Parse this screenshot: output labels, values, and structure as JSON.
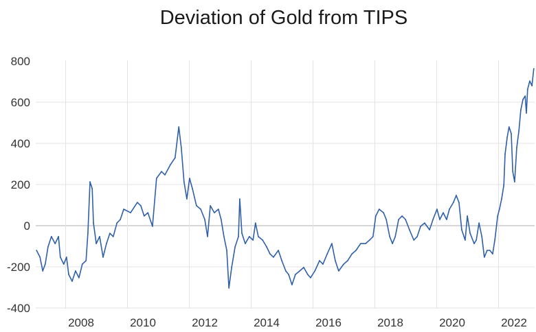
{
  "chart_data": {
    "type": "line",
    "title": "Deviation of Gold from TIPS",
    "xlabel": "",
    "ylabel": "",
    "ylim": [
      -400,
      800
    ],
    "xlim": [
      2006.5,
      2022.7
    ],
    "yticks": [
      800,
      600,
      400,
      200,
      0,
      -200,
      -400
    ],
    "xticks": [
      2008,
      2010,
      2012,
      2014,
      2016,
      2018,
      2020,
      2022
    ],
    "grid": true,
    "legend": "none",
    "series": [
      {
        "name": "Deviation of Gold from TIPS",
        "color": "#2e5faa",
        "x": [
          2006.56,
          2006.67,
          2006.76,
          2006.84,
          2006.93,
          2007.04,
          2007.16,
          2007.27,
          2007.33,
          2007.44,
          2007.53,
          2007.6,
          2007.71,
          2007.82,
          2007.93,
          2008.04,
          2008.16,
          2008.22,
          2008.29,
          2008.36,
          2008.4,
          2008.49,
          2008.6,
          2008.71,
          2008.82,
          2008.93,
          2009.04,
          2009.16,
          2009.27,
          2009.38,
          2009.6,
          2009.82,
          2009.93,
          2010.04,
          2010.16,
          2010.31,
          2010.44,
          2010.6,
          2010.71,
          2010.89,
          2011.04,
          2011.16,
          2011.24,
          2011.33,
          2011.42,
          2011.51,
          2011.6,
          2011.73,
          2011.87,
          2012.0,
          2012.09,
          2012.18,
          2012.31,
          2012.44,
          2012.53,
          2012.62,
          2012.71,
          2012.78,
          2012.87,
          2012.98,
          2013.09,
          2013.13,
          2013.2,
          2013.31,
          2013.44,
          2013.56,
          2013.64,
          2013.73,
          2013.87,
          2014.0,
          2014.11,
          2014.22,
          2014.38,
          2014.49,
          2014.62,
          2014.71,
          2014.82,
          2014.93,
          2015.07,
          2015.2,
          2015.33,
          2015.42,
          2015.56,
          2015.71,
          2015.82,
          2015.96,
          2016.11,
          2016.22,
          2016.33,
          2016.49,
          2016.62,
          2016.76,
          2016.89,
          2017.04,
          2017.2,
          2017.33,
          2017.44,
          2017.53,
          2017.64,
          2017.78,
          2017.87,
          2017.98,
          2018.07,
          2018.16,
          2018.27,
          2018.38,
          2018.49,
          2018.62,
          2018.76,
          2018.87,
          2018.98,
          2019.11,
          2019.27,
          2019.38,
          2019.51,
          2019.6,
          2019.71,
          2019.82,
          2019.91,
          2020.04,
          2020.13,
          2020.22,
          2020.31,
          2020.42,
          2020.49,
          2020.58,
          2020.71,
          2020.78,
          2020.87,
          2020.96,
          2021.04,
          2021.13,
          2021.22,
          2021.31,
          2021.38,
          2021.47,
          2021.53,
          2021.6,
          2021.67,
          2021.71,
          2021.78,
          2021.84,
          2021.91,
          2021.96,
          2022.02,
          2022.09,
          2022.16,
          2022.22,
          2022.29,
          2022.36,
          2022.4,
          2022.44,
          2022.51,
          2022.58,
          2022.64
        ],
        "values": [
          -120,
          -153,
          -220,
          -187,
          -103,
          -53,
          -87,
          -53,
          -153,
          -187,
          -153,
          -237,
          -270,
          -220,
          -253,
          -187,
          -170,
          -37,
          213,
          180,
          13,
          -87,
          -53,
          -153,
          -87,
          -37,
          -53,
          13,
          30,
          80,
          63,
          113,
          97,
          47,
          63,
          -3,
          230,
          263,
          247,
          297,
          330,
          480,
          380,
          213,
          130,
          230,
          180,
          97,
          80,
          30,
          -53,
          97,
          63,
          80,
          30,
          -53,
          -120,
          -303,
          -203,
          -103,
          -53,
          130,
          -37,
          -87,
          -53,
          -70,
          13,
          -53,
          -70,
          -103,
          -137,
          -153,
          -120,
          -170,
          -220,
          -237,
          -287,
          -237,
          -220,
          -203,
          -237,
          -253,
          -220,
          -170,
          -187,
          -137,
          -87,
          -170,
          -220,
          -187,
          -170,
          -137,
          -120,
          -87,
          -87,
          -70,
          -53,
          47,
          80,
          63,
          30,
          -53,
          -87,
          -53,
          30,
          47,
          30,
          -20,
          -70,
          -53,
          -3,
          13,
          -20,
          30,
          80,
          30,
          63,
          30,
          80,
          113,
          147,
          113,
          -20,
          -70,
          47,
          -37,
          -87,
          -70,
          13,
          -53,
          -153,
          -120,
          -120,
          -137,
          -70,
          47,
          80,
          130,
          197,
          347,
          430,
          480,
          447,
          263,
          213,
          380,
          463,
          563,
          613,
          630,
          547,
          663,
          703,
          680,
          763
        ]
      }
    ]
  }
}
